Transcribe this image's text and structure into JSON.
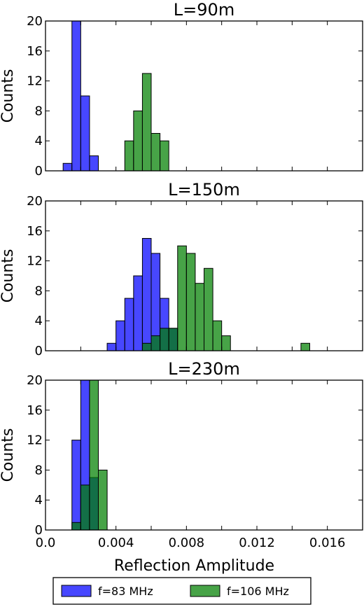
{
  "chart_data": [
    {
      "type": "bar",
      "title": "L=90m",
      "xlabel": "",
      "ylabel": "Counts",
      "xlim": [
        0.0,
        0.018
      ],
      "ylim": [
        0,
        20
      ],
      "yticks": [
        "0",
        "4",
        "8",
        "12",
        "16",
        "20"
      ],
      "xticks": [],
      "series": [
        {
          "name": "f=83 MHz",
          "color": "#0000ff",
          "bins": [
            [
              0.001,
              0.0015,
              1
            ],
            [
              0.0015,
              0.002,
              20
            ],
            [
              0.002,
              0.0025,
              10
            ],
            [
              0.0025,
              0.003,
              2
            ]
          ]
        },
        {
          "name": "f=106 MHz",
          "color": "#008000",
          "bins": [
            [
              0.0045,
              0.005,
              4
            ],
            [
              0.005,
              0.0055,
              8
            ],
            [
              0.0055,
              0.006,
              13
            ],
            [
              0.006,
              0.0065,
              5
            ],
            [
              0.0065,
              0.007,
              4
            ]
          ]
        }
      ]
    },
    {
      "type": "bar",
      "title": "L=150m",
      "xlabel": "",
      "ylabel": "Counts",
      "xlim": [
        0.0,
        0.018
      ],
      "ylim": [
        0,
        20
      ],
      "yticks": [
        "0",
        "4",
        "8",
        "12",
        "16",
        "20"
      ],
      "xticks": [],
      "series": [
        {
          "name": "f=83 MHz",
          "color": "#0000ff",
          "bins": [
            [
              0.0035,
              0.004,
              1
            ],
            [
              0.004,
              0.0045,
              4
            ],
            [
              0.0045,
              0.005,
              7
            ],
            [
              0.005,
              0.0055,
              10
            ],
            [
              0.0055,
              0.006,
              15
            ],
            [
              0.006,
              0.0065,
              13
            ],
            [
              0.0065,
              0.007,
              7
            ],
            [
              0.007,
              0.0075,
              3
            ],
            [
              0.0075,
              0.008,
              0
            ]
          ]
        },
        {
          "name": "f=106 MHz",
          "color": "#008000",
          "bins": [
            [
              0.0055,
              0.006,
              1
            ],
            [
              0.006,
              0.0065,
              2
            ],
            [
              0.0065,
              0.007,
              3
            ],
            [
              0.007,
              0.0075,
              3
            ],
            [
              0.0075,
              0.008,
              14
            ],
            [
              0.008,
              0.0085,
              13
            ],
            [
              0.0085,
              0.009,
              9
            ],
            [
              0.009,
              0.0095,
              11
            ],
            [
              0.0095,
              0.01,
              4
            ],
            [
              0.01,
              0.0105,
              2
            ],
            [
              0.0145,
              0.015,
              1
            ]
          ]
        }
      ]
    },
    {
      "type": "bar",
      "title": "L=230m",
      "xlabel": "Reflection Amplitude",
      "ylabel": "Counts",
      "xlim": [
        0.0,
        0.018
      ],
      "ylim": [
        0,
        20
      ],
      "yticks": [
        "0",
        "4",
        "8",
        "12",
        "16",
        "20"
      ],
      "xticks": [
        "0.0",
        "0.004",
        "0.008",
        "0.012",
        "0.016"
      ],
      "series": [
        {
          "name": "f=83 MHz",
          "color": "#0000ff",
          "bins": [
            [
              0.0015,
              0.002,
              12
            ],
            [
              0.002,
              0.0025,
              20
            ],
            [
              0.0025,
              0.003,
              7
            ]
          ]
        },
        {
          "name": "f=106 MHz",
          "color": "#008000",
          "bins": [
            [
              0.0015,
              0.002,
              1
            ],
            [
              0.002,
              0.0025,
              6
            ],
            [
              0.0025,
              0.003,
              20
            ],
            [
              0.003,
              0.0035,
              8
            ]
          ]
        }
      ]
    }
  ],
  "legend": {
    "placement": "bottom",
    "items": [
      {
        "label": "f=83 MHz",
        "color": "#0000ff"
      },
      {
        "label": "f=106 MHz",
        "color": "#008000"
      }
    ]
  }
}
